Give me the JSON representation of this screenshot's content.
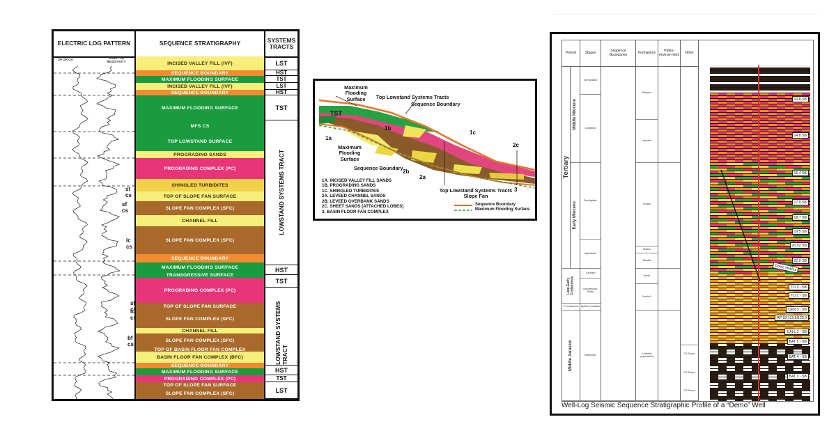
{
  "panel_a": {
    "headers": {
      "log": "ELECTRIC LOG PATTERN",
      "seq": "SEQUENCE STRATIGRAPHY",
      "tracts": "SYSTEMS TRACTS"
    },
    "log_labels": [
      "SP OR GA",
      "SONIC OR RESISTIVITY"
    ],
    "bands": [
      {
        "label": "INCISED VALLEY FILL (IVF)",
        "color": "#f7ee7c",
        "dark": true
      },
      {
        "label": "SEQUENCE BOUNDARY",
        "color": "#f28b2f"
      },
      {
        "label": "MAXIMUM FLOODING SURFACE",
        "color": "#1a9b3e"
      },
      {
        "label": "INCISED VALLEY FILL (IVF)",
        "color": "#f7ee7c",
        "dark": true
      },
      {
        "label": "SEQUENCE BOUNDARY",
        "color": "#f28b2f"
      },
      {
        "label": "MAXIMUM FLOODING SURFACE",
        "color": "#1a9b3e"
      },
      {
        "label": "MFS CS",
        "color": "#1a9b3e"
      },
      {
        "label": "TOP LOWSTAND SURFACE",
        "color": "#1a9b3e"
      },
      {
        "label": "PROGRADING SANDS",
        "color": "#f7ee7c",
        "dark": true
      },
      {
        "label": "PROGRADING COMPLEX (PC)",
        "color": "#e8357a"
      },
      {
        "label": "SHINGLED TURBIDITES",
        "color": "#f3d24a",
        "dark": true
      },
      {
        "label": "TOP OF SLOPE FAN SURFACE",
        "color": "#f7ee7c",
        "dark": true
      },
      {
        "label": "SLOPE FAN COMPLEX (SFC)",
        "color": "#a8692a"
      },
      {
        "label": "CHANNEL FILL",
        "color": "#f7ee7c",
        "dark": true
      },
      {
        "label": "SLOPE FAN COMPLEX (SFC)",
        "color": "#a8692a"
      },
      {
        "label": "SEQUENCE BOUNDARY",
        "color": "#f28b2f"
      },
      {
        "label": "MAXIMUM FLOODING SURFACE",
        "color": "#1a9b3e"
      },
      {
        "label": "TRANSGRESSIVE SURFACE",
        "color": "#1a9b3e"
      },
      {
        "label": "PROGRADING COMPLEX (PC)",
        "color": "#e8357a"
      },
      {
        "label": "TOP OF SLOPE FAN SURFACE",
        "color": "#a8692a"
      },
      {
        "label": "SLOPE FAN COMPLEX (SFC)",
        "color": "#a8692a"
      },
      {
        "label": "CHANNEL FILL",
        "color": "#f7ee7c",
        "dark": true
      },
      {
        "label": "SLOPE FAN COMPLEX (SFC)",
        "color": "#a8692a"
      },
      {
        "label": "TOP OF BASIN FLOOR FAN COMPLEX",
        "color": "#a8692a"
      },
      {
        "label": "BASIN FLOOR FAN COMPLEX (BFC)",
        "color": "#f7ee7c",
        "dark": true
      },
      {
        "label": "SEQUENCE BOUNDARY",
        "color": "#f28b2f"
      },
      {
        "label": "MAXIMUM FLOODING SURFACE",
        "color": "#1a9b3e"
      },
      {
        "label": "PROGRADING COMPLEX (PC)",
        "color": "#e8357a"
      },
      {
        "label": "TOP OF SLOPE FAN SURFACE",
        "color": "#a8692a"
      },
      {
        "label": "SLOPE FAN COMPLEX (SFC)",
        "color": "#a8692a"
      }
    ],
    "tracts": [
      "LST",
      "HST",
      "TST",
      "LST",
      "HST",
      "TST",
      "LOWSTAND SYSTEMS TRACT",
      "HST",
      "TST",
      "LOWSTAND SYSTEMS TRACT",
      "HST",
      "TST",
      "LST"
    ],
    "log_tags": [
      "st cs",
      "sf cs",
      "lc cs",
      "sf cs",
      "lc cs",
      "bf cs"
    ]
  },
  "panel_b": {
    "labels": {
      "mfs_top": "Maximum Flooding Surface",
      "top_lst": "Top Lowstand Systems Tracts",
      "seq_boundary": "Sequence Boundary",
      "tst": "TST",
      "mfs_mid": "Maximum Flooding Surface",
      "seq_boundary2": "Sequence Boundary",
      "slope_fan": "Top Lowstand Systems Tracts Slope Fan",
      "n1a": "1a",
      "n1b": "1b",
      "n1c": "1c",
      "n2a": "2a",
      "n2b": "2b",
      "n2c": "2c",
      "n3": "3"
    },
    "legend": [
      "1A. INCISED VALLEY FILL SANDS",
      "1B. PROGRADING SANDS",
      "1C. SHINGLED TURBIDITES",
      "2A. LEVEED CHANNEL SANDS",
      "2B. LEVEED OVERBANK SANDS",
      "2C. SHEET SANDS (ATTACHED LOBES)",
      "3. BASIN FLOOR FAN COMPLEX"
    ],
    "line_legend": [
      "Sequence Boundary",
      "Maximum Flooding Surface"
    ],
    "colors": {
      "sb": "#e8742a",
      "mfs": "#2f9a3a"
    }
  },
  "panel_c": {
    "headers": [
      "Period",
      "Stages",
      "Sequence Boundaries",
      "Formations",
      "Paleo-environ-ment",
      "Other"
    ],
    "periods": [
      "Tertiary",
      "Late-Early Cretaceous",
      "E. Cretaceous",
      "Middle Jurassic"
    ],
    "epochs": [
      "Middle Miocene",
      "Early Miocene"
    ],
    "stages": [
      "Serravallian",
      "Langhian",
      "Burdigalian",
      "Aquitanian",
      "Turonian",
      "Cenomanian-Albian",
      "Aptian-Coniacian",
      "Bathonian"
    ],
    "formations": [
      "Belayim",
      "Kareem",
      "Rudeis",
      "Nukhul",
      "Matulla",
      "Nubia",
      "Nubia A",
      "Khatatba (equivalent)"
    ],
    "seismic_tags": [
      "13.8 SB",
      "14.8 SB",
      "16.4 SB",
      "17.0 SB",
      "18.7 SB",
      "19.5 SB",
      "20.52 SB",
      "22.0 SB",
      "TU 3 - SB",
      "TU 2 - SB",
      "CEN 3 - SB",
      "AP 93-112.9/120.0",
      "CALL 3 - SB",
      "BAT 5 - SB",
      "BAT 4 - SB",
      "BAT 3 - SB"
    ],
    "dome_label": "Dome Nukhul",
    "other": [
      "Oil Shows",
      "Oil Shows",
      "Oil Shows"
    ],
    "caption": "Well-Log Seismic Sequence Stratigraphic Profile of a “Demo” Well"
  }
}
